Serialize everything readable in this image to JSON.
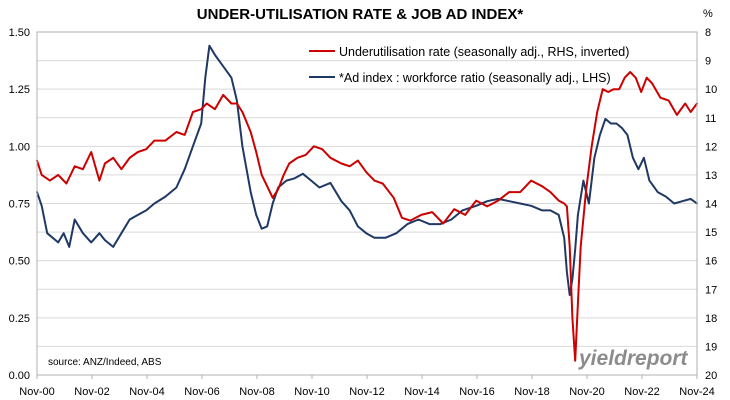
{
  "chart_data": {
    "type": "line",
    "title": "UNDER-UTILISATION RATE & JOB AD INDEX*",
    "source": "source: ANZ/Indeed, ABS",
    "brand": "yieldreport",
    "x_tick_labels": [
      "Nov-00",
      "Nov-02",
      "Nov-04",
      "Nov-06",
      "Nov-08",
      "Nov-10",
      "Nov-12",
      "Nov-14",
      "Nov-16",
      "Nov-18",
      "Nov-20",
      "Nov-22",
      "Nov-24"
    ],
    "xlim": [
      2000.83,
      2024.83
    ],
    "left_axis": {
      "ticks": [
        "0.00",
        "0.25",
        "0.50",
        "0.75",
        "1.00",
        "1.25",
        "1.50"
      ],
      "ylim": [
        0,
        1.5
      ]
    },
    "right_axis": {
      "unit": "%",
      "ticks": [
        "8",
        "9",
        "10",
        "11",
        "12",
        "13",
        "14",
        "15",
        "16",
        "17",
        "18",
        "19",
        "20"
      ],
      "ylim": [
        8,
        20
      ],
      "inverted": true
    },
    "grid": true,
    "legend_position": "top-right",
    "series": [
      {
        "name": "Underutilisation rate (seasonally adj., RHS, inverted)",
        "axis": "right",
        "color": "#cc0000",
        "x": [
          2000.83,
          2001.0,
          2001.3,
          2001.6,
          2001.9,
          2002.2,
          2002.5,
          2002.8,
          2003.1,
          2003.3,
          2003.6,
          2003.9,
          2004.2,
          2004.5,
          2004.8,
          2005.1,
          2005.5,
          2005.9,
          2006.2,
          2006.5,
          2006.8,
          2007.0,
          2007.3,
          2007.6,
          2007.9,
          2008.1,
          2008.3,
          2008.6,
          2008.8,
          2009.0,
          2009.2,
          2009.4,
          2009.6,
          2009.8,
          2010.0,
          2010.3,
          2010.6,
          2010.9,
          2011.2,
          2011.5,
          2011.9,
          2012.2,
          2012.5,
          2012.8,
          2013.1,
          2013.4,
          2013.8,
          2014.1,
          2014.4,
          2014.8,
          2015.2,
          2015.6,
          2016.0,
          2016.4,
          2016.8,
          2017.2,
          2017.6,
          2018.0,
          2018.4,
          2018.8,
          2019.2,
          2019.5,
          2019.8,
          2020.0,
          2020.1,
          2020.2,
          2020.3,
          2020.4,
          2020.5,
          2020.6,
          2020.8,
          2021.0,
          2021.2,
          2021.4,
          2021.6,
          2021.8,
          2022.0,
          2022.2,
          2022.4,
          2022.6,
          2022.8,
          2023.0,
          2023.2,
          2023.5,
          2023.8,
          2024.1,
          2024.4,
          2024.6,
          2024.83
        ],
        "values": [
          12.5,
          13.0,
          13.2,
          13.0,
          13.3,
          12.7,
          12.8,
          12.2,
          13.2,
          12.6,
          12.4,
          12.8,
          12.4,
          12.2,
          12.1,
          11.8,
          11.8,
          11.5,
          11.6,
          10.8,
          10.7,
          10.5,
          10.7,
          10.2,
          10.5,
          10.5,
          10.8,
          11.5,
          12.2,
          13.0,
          13.4,
          13.8,
          13.5,
          13.0,
          12.6,
          12.4,
          12.3,
          12.0,
          12.1,
          12.4,
          12.6,
          12.7,
          12.5,
          12.9,
          13.2,
          13.3,
          13.8,
          14.5,
          14.6,
          14.4,
          14.3,
          14.7,
          14.2,
          14.4,
          13.9,
          14.1,
          13.9,
          13.6,
          13.6,
          13.2,
          13.4,
          13.6,
          13.9,
          14.0,
          14.1,
          15.5,
          18.0,
          19.5,
          17.5,
          15.5,
          13.5,
          12.0,
          10.8,
          10.0,
          10.1,
          10.0,
          10.0,
          9.6,
          9.4,
          9.6,
          10.1,
          9.6,
          9.8,
          10.3,
          10.4,
          10.9,
          10.5,
          10.8,
          10.5
        ]
      },
      {
        "name": "*Ad index : workforce ratio (seasonally adj., LHS)",
        "axis": "left",
        "color": "#1f3864",
        "x": [
          2000.83,
          2001.0,
          2001.2,
          2001.4,
          2001.6,
          2001.8,
          2002.0,
          2002.2,
          2002.5,
          2002.8,
          2003.1,
          2003.3,
          2003.6,
          2003.9,
          2004.2,
          2004.5,
          2004.8,
          2005.1,
          2005.5,
          2005.9,
          2006.2,
          2006.5,
          2006.8,
          2006.95,
          2007.1,
          2007.3,
          2007.6,
          2007.9,
          2008.1,
          2008.3,
          2008.6,
          2008.8,
          2009.0,
          2009.2,
          2009.4,
          2009.6,
          2009.9,
          2010.2,
          2010.5,
          2010.8,
          2011.1,
          2011.5,
          2011.9,
          2012.2,
          2012.5,
          2012.8,
          2013.1,
          2013.5,
          2013.9,
          2014.3,
          2014.7,
          2015.1,
          2015.5,
          2015.9,
          2016.3,
          2016.8,
          2017.2,
          2017.6,
          2018.0,
          2018.4,
          2018.8,
          2019.2,
          2019.5,
          2019.8,
          2020.0,
          2020.1,
          2020.2,
          2020.3,
          2020.4,
          2020.5,
          2020.7,
          2020.9,
          2021.1,
          2021.3,
          2021.5,
          2021.7,
          2021.9,
          2022.1,
          2022.3,
          2022.5,
          2022.7,
          2022.9,
          2023.1,
          2023.4,
          2023.7,
          2024.0,
          2024.3,
          2024.6,
          2024.83
        ],
        "values": [
          0.8,
          0.74,
          0.62,
          0.6,
          0.58,
          0.62,
          0.56,
          0.68,
          0.62,
          0.58,
          0.62,
          0.59,
          0.56,
          0.62,
          0.68,
          0.7,
          0.72,
          0.75,
          0.78,
          0.82,
          0.9,
          1.0,
          1.1,
          1.3,
          1.44,
          1.4,
          1.35,
          1.3,
          1.2,
          1.0,
          0.8,
          0.7,
          0.64,
          0.65,
          0.75,
          0.82,
          0.85,
          0.86,
          0.88,
          0.85,
          0.82,
          0.84,
          0.76,
          0.72,
          0.65,
          0.62,
          0.6,
          0.6,
          0.62,
          0.66,
          0.68,
          0.66,
          0.66,
          0.68,
          0.72,
          0.74,
          0.76,
          0.77,
          0.76,
          0.75,
          0.74,
          0.72,
          0.72,
          0.7,
          0.6,
          0.45,
          0.35,
          0.42,
          0.55,
          0.7,
          0.85,
          0.75,
          0.95,
          1.05,
          1.12,
          1.1,
          1.1,
          1.08,
          1.05,
          0.95,
          0.9,
          0.95,
          0.85,
          0.8,
          0.78,
          0.75,
          0.76,
          0.77,
          0.75
        ]
      }
    ]
  }
}
